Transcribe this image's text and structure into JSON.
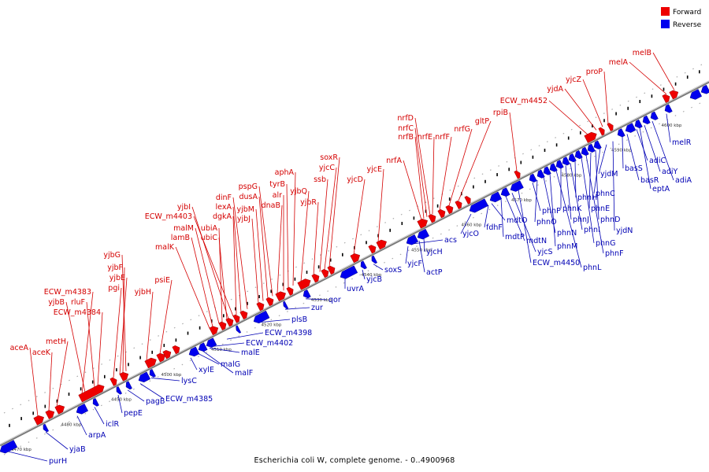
{
  "caption": "Escherichia coli W, complete genome. - 0..4900968",
  "legend": [
    {
      "label": "Forward",
      "color": "#ee0000"
    },
    {
      "label": "Reverse",
      "color": "#0000ee"
    }
  ],
  "colors": {
    "forward": "#ee0000",
    "reverse": "#0000ee",
    "backbone": "#8a8a8a"
  },
  "kbp_labels": [
    "4470 kbp",
    "4480 kbp",
    "4490 kbp",
    "4500 kbp",
    "4510 kbp",
    "4520 kbp",
    "4530 kbp",
    "4540 kbp",
    "4550 kbp",
    "4560 kbp",
    "4570 kbp",
    "4580 kbp",
    "4590 kbp",
    "4600 kbp"
  ],
  "forward_labels": [
    "aceA",
    "aceK",
    "metH",
    "ECW_m4383",
    "yjbB",
    "rluF",
    "ECW_m4384",
    "pgi",
    "yjbE",
    "yjbF",
    "yjbG",
    "yjbH",
    "psiE",
    "malK",
    "lamB",
    "malM",
    "ubiA",
    "ubiC",
    "yjbI",
    "ECW_m4403",
    "dgkA",
    "lexA",
    "dinF",
    "yjbJ",
    "yjbM",
    "dusA",
    "pspG",
    "dnaB",
    "alr",
    "tyrB",
    "aphA",
    "yjbQ",
    "yjbR",
    "ssb",
    "yjcC",
    "soxR",
    "yjcD",
    "yjcE",
    "nrfA",
    "nrfB",
    "nrfC",
    "nrfD",
    "nrfE",
    "nrfF",
    "nrfG",
    "gltP",
    "rpiB",
    "ECW_m4452",
    "yjdA",
    "yjcZ",
    "proP",
    "melA",
    "melB"
  ],
  "reverse_labels": [
    "purH",
    "yjaB",
    "arpA",
    "iclR",
    "pepE",
    "pagB",
    "ECW_m4385",
    "lysC",
    "xylE",
    "malG",
    "malF",
    "malE",
    "ECW_m4398",
    "ECW_m4402",
    "plsB",
    "zur",
    "qor",
    "uvrA",
    "yjcB",
    "soxS",
    "yjcF",
    "actP",
    "yjcH",
    "acs",
    "yjcO",
    "fdhF",
    "mdtO",
    "mdtP",
    "mdtN",
    "yjcS",
    "ECW_m4450",
    "phnP",
    "phnO",
    "phnN",
    "phnM",
    "phnL",
    "phnK",
    "phnJ",
    "phnI",
    "phnH",
    "phnG",
    "phnF",
    "phnE",
    "phnD",
    "phnC",
    "yjdM",
    "yjdN",
    "basS",
    "basR",
    "adiC",
    "eptA",
    "adiY",
    "adiA",
    "melR"
  ]
}
